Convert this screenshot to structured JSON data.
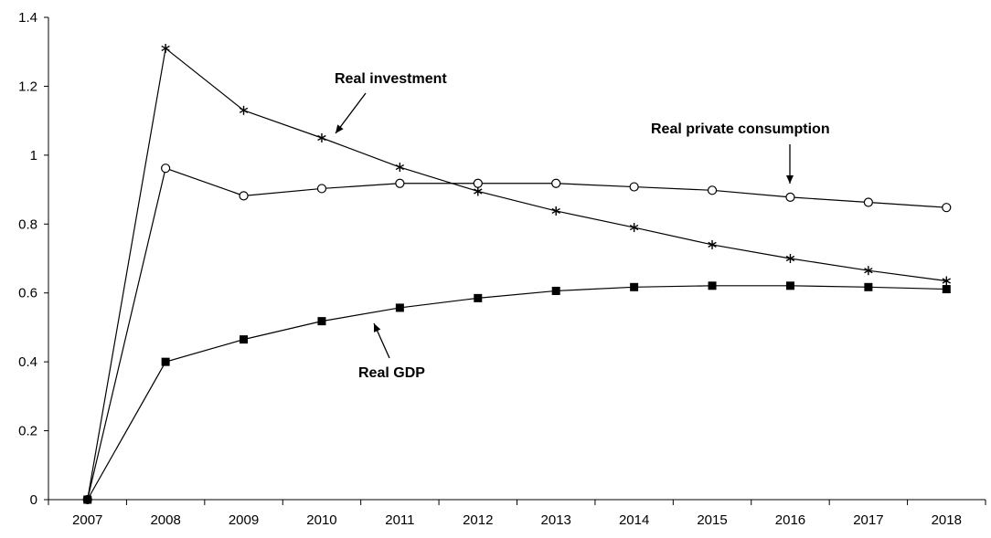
{
  "chart_data": {
    "type": "line",
    "x": [
      "2007",
      "2008",
      "2009",
      "2010",
      "2011",
      "2012",
      "2013",
      "2014",
      "2015",
      "2016",
      "2017",
      "2018"
    ],
    "ylim": [
      0,
      1.4
    ],
    "yticks": [
      0,
      0.2,
      0.4,
      0.6,
      0.8,
      1,
      1.2,
      1.4
    ],
    "ytick_labels": [
      "0",
      "0.2",
      "0.4",
      "0.6",
      "0.8",
      "1",
      "1.2",
      "1.4"
    ],
    "grid": false,
    "series": [
      {
        "name": "Real investment",
        "marker": "star",
        "values": [
          0,
          1.31,
          1.13,
          1.05,
          0.965,
          0.895,
          0.838,
          0.79,
          0.74,
          0.7,
          0.665,
          0.635
        ]
      },
      {
        "name": "Real private consumption",
        "marker": "circle-open",
        "values": [
          0,
          0.962,
          0.882,
          0.903,
          0.918,
          0.918,
          0.918,
          0.908,
          0.898,
          0.878,
          0.863,
          0.848
        ]
      },
      {
        "name": "Real GDP",
        "marker": "square-filled",
        "values": [
          0,
          0.4,
          0.465,
          0.518,
          0.557,
          0.585,
          0.606,
          0.617,
          0.621,
          0.621,
          0.617,
          0.611
        ]
      }
    ],
    "annotations": [
      {
        "text": "Real investment",
        "series": 0,
        "arrow_to_index": 3
      },
      {
        "text": "Real private consumption",
        "series": 1,
        "arrow_to_index": 9
      },
      {
        "text": "Real GDP",
        "series": 2,
        "arrow_to_index": 4
      }
    ]
  }
}
